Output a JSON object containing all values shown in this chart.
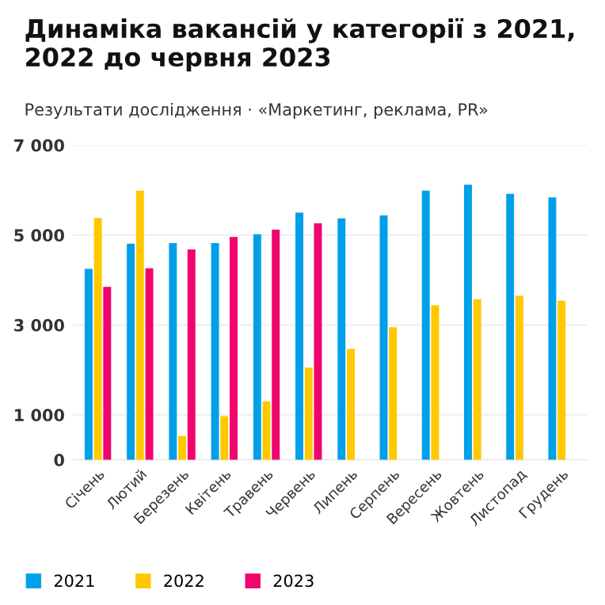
{
  "chart_data": {
    "type": "bar",
    "title": "Динаміка вакансій у категорії з 2021, 2022 до червня 2023",
    "subtitle": "Результати дослідження · «Маркетинг, реклама, PR»",
    "categories": [
      "Січень",
      "Лютий",
      "Березень",
      "Квітень",
      "Травень",
      "Червень",
      "Липень",
      "Серпень",
      "Вересень",
      "Жовтень",
      "Листопад",
      "Грудень"
    ],
    "series": [
      {
        "name": "2021",
        "color": "#00a0e9",
        "values": [
          4250,
          4810,
          4820,
          4820,
          5020,
          5500,
          5370,
          5440,
          5990,
          6120,
          5920,
          5840
        ]
      },
      {
        "name": "2022",
        "color": "#ffc800",
        "values": [
          5380,
          5990,
          530,
          970,
          1300,
          2050,
          2470,
          2950,
          3440,
          3570,
          3650,
          3540
        ]
      },
      {
        "name": "2023",
        "color": "#f0056e",
        "values": [
          3850,
          4260,
          4680,
          4960,
          5120,
          5260,
          null,
          null,
          null,
          null,
          null,
          null
        ]
      }
    ],
    "ylim": [
      0,
      7000
    ],
    "yticks": [
      {
        "value": 0,
        "label": "0"
      },
      {
        "value": 1000,
        "label": "1 000"
      },
      {
        "value": 3000,
        "label": "3 000"
      },
      {
        "value": 5000,
        "label": "5 000"
      },
      {
        "value": 7000,
        "label": "7 000"
      }
    ],
    "grid": "y",
    "legend": "bottom left"
  }
}
